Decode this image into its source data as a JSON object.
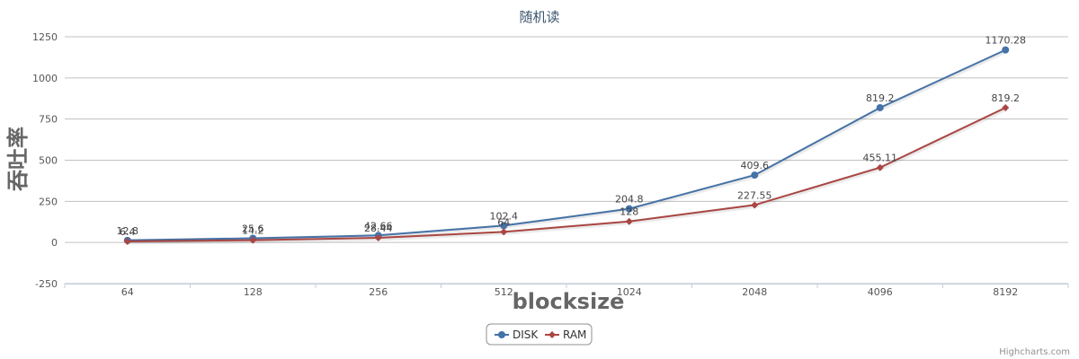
{
  "chart_data": {
    "type": "line",
    "title": "随机读",
    "xlabel": "blocksize",
    "ylabel": "吞吐率",
    "categories": [
      "64",
      "128",
      "256",
      "512",
      "1024",
      "2048",
      "4096",
      "8192"
    ],
    "ylim": [
      -250,
      1250
    ],
    "yticks": [
      -250,
      0,
      250,
      500,
      750,
      1000,
      1250
    ],
    "grid": true,
    "legend_position": "bottom-center",
    "series": [
      {
        "name": "DISK",
        "color": "#4572a7",
        "marker": "circle",
        "values": [
          12.8,
          25.6,
          42.66,
          102.4,
          204.8,
          409.6,
          819.2,
          1170.28
        ],
        "labels": [
          "12.8",
          "25.6",
          "42.66",
          "102.4",
          "204.8",
          "409.6",
          "819.2",
          "1170.28"
        ]
      },
      {
        "name": "RAM",
        "color": "#aa4643",
        "marker": "diamond",
        "values": [
          6.4,
          14.2,
          28.44,
          64,
          128,
          227.55,
          455.11,
          819.2
        ],
        "labels": [
          "6.4",
          "14.2",
          "28.44",
          "64",
          "128",
          "227.55",
          "455.11",
          "819.2"
        ]
      }
    ]
  },
  "credits": "Highcharts.com"
}
